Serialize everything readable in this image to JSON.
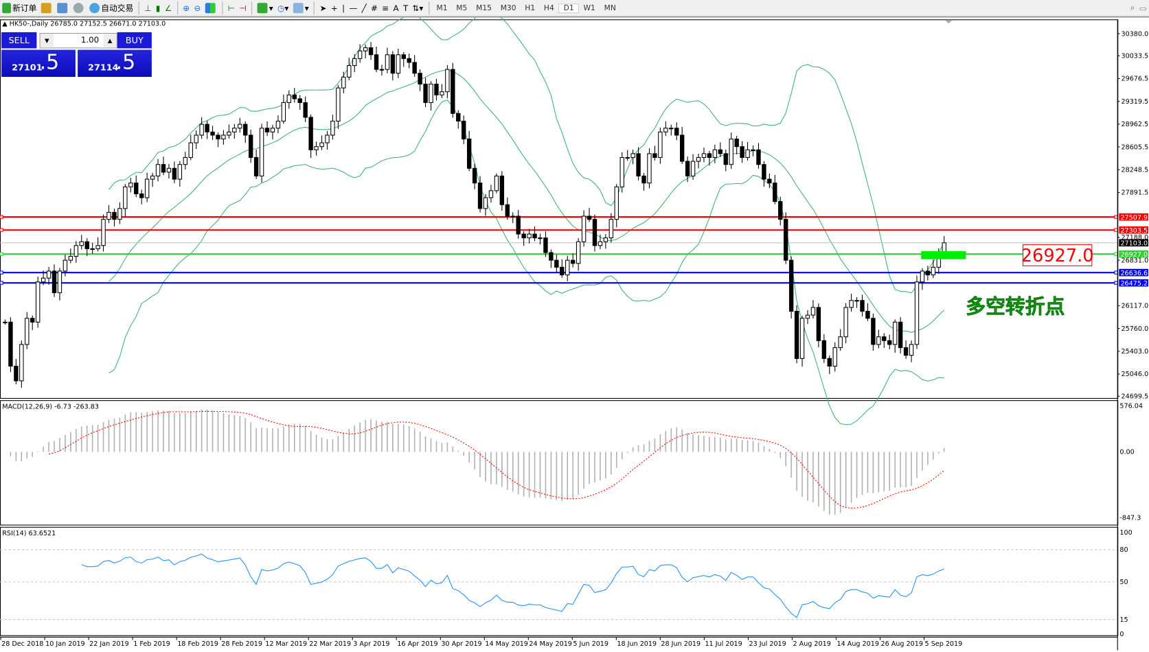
{
  "toolbar": {
    "new_order": "新订单",
    "auto_trading": "自动交易",
    "icons": [
      "new-order-icon",
      "navigator-icon",
      "terminal-icon",
      "signals-icon",
      "auto-trading-icon",
      "bar-chart-icon",
      "candlestick-icon",
      "line-chart-icon",
      "zoom-in-icon",
      "zoom-out-icon",
      "tile-windows-icon",
      "auto-scroll-icon",
      "chart-shift-icon",
      "indicators-icon",
      "periods-icon",
      "templates-icon",
      "cursor-icon",
      "crosshair-icon",
      "vertical-line-icon",
      "horizontal-line-icon",
      "trendline-icon",
      "fibonacci-icon",
      "fibonacci-fan-icon",
      "text-icon",
      "text-label-icon",
      "arrows-icon",
      "search-icon",
      "chat-icon"
    ],
    "timeframes": [
      "M1",
      "M5",
      "M15",
      "M30",
      "H1",
      "H4",
      "D1",
      "W1",
      "MN"
    ],
    "active_timeframe": "D1"
  },
  "header": {
    "symbol": "HK50-,Daily",
    "ohlc": "26785.0 27152.5 26671.0 27103.0"
  },
  "trade_panel": {
    "sell_label": "SELL",
    "buy_label": "BUY",
    "lot": "1.00",
    "bid_main": "27101",
    "bid_frac": ".5",
    "ask_main": "27114",
    "ask_frac": ".5"
  },
  "annotations": {
    "turning_point_text": "多空转折点",
    "price_box": "26927.0"
  },
  "chart_data": {
    "type": "candlestick",
    "symbol": "HK50-",
    "timeframe": "Daily",
    "ylim": [
      24699.5,
      30380.0
    ],
    "price_ticks": [
      "30380.0",
      "30033.5",
      "29676.5",
      "29319.5",
      "28962.5",
      "28605.5",
      "28248.5",
      "27891.5",
      "27188.0",
      "26831.0",
      "26117.0",
      "25760.0",
      "25403.0",
      "25046.0",
      "24699.5"
    ],
    "x_labels": [
      "28 Dec 2018",
      "10 Jan 2019",
      "22 Jan 2019",
      "1 Feb 2019",
      "18 Feb 2019",
      "28 Feb 2019",
      "12 Mar 2019",
      "22 Mar 2019",
      "3 Apr 2019",
      "16 Apr 2019",
      "30 Apr 2019",
      "14 May 2019",
      "24 May 2019",
      "5 Jun 2019",
      "18 Jun 2019",
      "28 Jun 2019",
      "11 Jul 2019",
      "23 Jul 2019",
      "2 Aug 2019",
      "14 Aug 2019",
      "26 Aug 2019",
      "5 Sep 2019"
    ],
    "close": [
      25860,
      25170,
      24940,
      25510,
      25920,
      25860,
      26490,
      26550,
      26660,
      26320,
      26660,
      26830,
      26890,
      27060,
      27120,
      27010,
      27010,
      27060,
      27470,
      27580,
      27470,
      27640,
      27980,
      28040,
      27870,
      27810,
      28100,
      28150,
      28330,
      28210,
      28270,
      28100,
      28330,
      28440,
      28670,
      28790,
      28960,
      28840,
      28790,
      28730,
      28790,
      28840,
      28900,
      28960,
      28790,
      28440,
      28150,
      28900,
      28840,
      28900,
      29010,
      29300,
      29420,
      29360,
      29300,
      29070,
      28560,
      28610,
      28670,
      28790,
      29010,
      29530,
      29700,
      29880,
      29990,
      30110,
      30160,
      30050,
      29820,
      29820,
      30050,
      29760,
      30050,
      29990,
      29930,
      29760,
      29590,
      29300,
      29590,
      29420,
      29470,
      29820,
      29130,
      29010,
      28730,
      28270,
      28040,
      27640,
      27810,
      27920,
      28150,
      27700,
      27520,
      27520,
      27240,
      27180,
      27240,
      27180,
      27180,
      26950,
      26830,
      26720,
      26600,
      26830,
      26780,
      27120,
      27520,
      27470,
      27060,
      27120,
      27180,
      27470,
      27980,
      28440,
      28440,
      28500,
      28150,
      28040,
      28500,
      28440,
      28840,
      28900,
      28900,
      28790,
      28380,
      28150,
      28380,
      28440,
      28500,
      28440,
      28560,
      28500,
      28330,
      28730,
      28610,
      28440,
      28560,
      28560,
      28330,
      28100,
      28040,
      27750,
      27470,
      26830,
      26030,
      25290,
      25920,
      25970,
      26090,
      25570,
      25290,
      25170,
      25460,
      25630,
      26090,
      26200,
      26200,
      26030,
      25920,
      25510,
      25630,
      25570,
      25510,
      25860,
      25460,
      25340,
      25510,
      26490,
      26660,
      26600,
      26720,
      26950,
      27103
    ],
    "levels": [
      {
        "price": 27507.9,
        "label": "27507.9",
        "color": "#ff0000"
      },
      {
        "price": 27303.5,
        "label": "27303.5",
        "color": "#ff0000"
      },
      {
        "price": 27103.0,
        "label": "27103.0",
        "color": "#000000",
        "kind": "bid"
      },
      {
        "price": 26927.0,
        "label": "26927.0",
        "color": "#33cc33"
      },
      {
        "price": 26636.6,
        "label": "26636.6",
        "color": "#0000ff"
      },
      {
        "price": 26475.2,
        "label": "26475.2",
        "color": "#0000ff"
      }
    ],
    "overlay": {
      "name": "Bollinger Bands",
      "color": "#3cb371"
    },
    "macd": {
      "title": "MACD(12,26,9) -6.73 -263.83",
      "ticks": [
        "576.04",
        "0.00",
        "-847.3"
      ],
      "ylim": [
        -847.3,
        576.04
      ],
      "signal_color": "#ff0000",
      "hist_color": "#b0b0b0"
    },
    "rsi": {
      "title": "RSI(14) 63.6521",
      "ticks": [
        "100",
        "80",
        "50",
        "15",
        "0"
      ],
      "levels": [
        80,
        50,
        15
      ],
      "ylim": [
        0,
        100
      ],
      "color": "#1e90ff"
    }
  }
}
